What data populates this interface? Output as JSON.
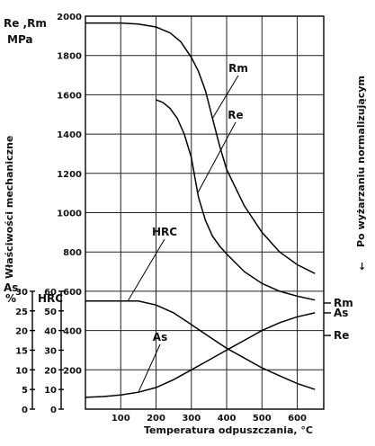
{
  "chart_data": {
    "type": "line",
    "ylabel": "Właściwości mechaniczne",
    "xlabel": "Temperatura odpuszczania, °C",
    "right_label": "Po wyżarzaniu normalizującym",
    "xlim": [
      0,
      675
    ],
    "x_ticks": [
      100,
      200,
      300,
      400,
      500,
      600
    ],
    "y_main": {
      "label": "Re ,Rm",
      "unit": "MPa",
      "lim": [
        0,
        2000
      ],
      "ticks": [
        200,
        400,
        600,
        800,
        1000,
        1200,
        1400,
        1600,
        1800,
        2000
      ]
    },
    "y_hrc": {
      "label": "HRC",
      "lim": [
        0,
        60
      ],
      "ticks": [
        0,
        10,
        20,
        30,
        40,
        50,
        60
      ]
    },
    "y_as": {
      "label": "As",
      "unit": "%",
      "lim": [
        0,
        30
      ],
      "ticks": [
        0,
        5,
        10,
        15,
        20,
        25,
        30
      ]
    },
    "series": [
      {
        "name": "Rm",
        "axis": "mpa",
        "x": [
          0,
          100,
          150,
          200,
          240,
          270,
          300,
          320,
          340,
          360,
          380,
          400,
          450,
          500,
          550,
          600,
          650
        ],
        "y": [
          1965,
          1965,
          1960,
          1945,
          1915,
          1870,
          1790,
          1720,
          1620,
          1480,
          1340,
          1220,
          1035,
          900,
          800,
          735,
          690
        ]
      },
      {
        "name": "Re",
        "axis": "mpa",
        "x": [
          200,
          220,
          240,
          260,
          280,
          300,
          310,
          320,
          340,
          360,
          380,
          400,
          450,
          500,
          550,
          600,
          650
        ],
        "y": [
          1575,
          1560,
          1530,
          1480,
          1400,
          1280,
          1180,
          1080,
          960,
          880,
          830,
          790,
          700,
          640,
          600,
          575,
          555
        ]
      },
      {
        "name": "HRC",
        "axis": "hrc",
        "x": [
          0,
          100,
          150,
          200,
          250,
          300,
          350,
          400,
          450,
          500,
          550,
          600,
          650
        ],
        "y": [
          55,
          55,
          55,
          53,
          49,
          43,
          37,
          31,
          26,
          21,
          17,
          13,
          10
        ]
      },
      {
        "name": "As",
        "axis": "as",
        "x": [
          0,
          50,
          100,
          150,
          200,
          250,
          300,
          350,
          400,
          450,
          500,
          550,
          600,
          650
        ],
        "y": [
          3,
          3.2,
          3.6,
          4.3,
          5.5,
          7.5,
          10,
          12.5,
          15,
          17.5,
          20,
          22,
          23.5,
          24.5
        ]
      }
    ],
    "right_annotations": [
      {
        "label": "Rm",
        "mpa": 540
      },
      {
        "label": "As",
        "mpa": 490
      },
      {
        "label": "Re",
        "mpa": 375
      }
    ]
  }
}
